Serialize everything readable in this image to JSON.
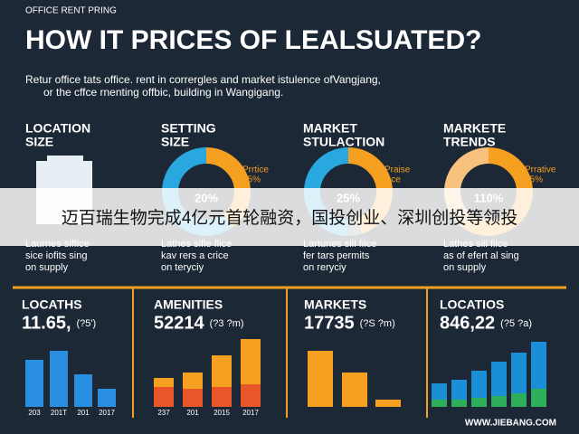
{
  "header": {
    "label": "OFFICE RENT PRING",
    "title": "HOW IT PRICES OF LEALSUATED?",
    "subtitle": [
      "Retur office tats office. rent in corrergles and market istulence ofVangjang,",
      "or the cffce rnenting offbic, building in Wangigang."
    ]
  },
  "sections": [
    {
      "heading": [
        "LOCATION",
        "SIZE"
      ],
      "caption": [
        "Laurnes siffice",
        "sice iofits sing",
        "on supply"
      ]
    },
    {
      "heading": [
        "SETTING",
        "SIZE"
      ],
      "caption": [
        "Lathes sifle flice",
        "kav rers a crice",
        "on teryciy"
      ],
      "donut": {
        "center": "20%",
        "note": [
          "Prrtice",
          "25%"
        ],
        "values": [
          40,
          60
        ],
        "colors": [
          "#f5a020",
          "#29a8e0"
        ]
      }
    },
    {
      "heading": [
        "MARKET",
        "STULACTION"
      ],
      "caption": [
        "Lartunes sill fiice",
        "fer tars permits",
        "on reryciy"
      ],
      "donut": {
        "center": "25%",
        "note": [
          "Praise",
          "ll ce"
        ],
        "values": [
          45,
          5,
          50
        ],
        "colors": [
          "#f5a020",
          "#7a8590",
          "#29a8e0"
        ]
      }
    },
    {
      "heading": [
        "MARKETE",
        "TRENDS"
      ],
      "caption": [
        "Lathes sill fiice",
        "as of efert al sing",
        "on supply"
      ],
      "donut": {
        "center": "110%",
        "note": [
          "Prrative",
          "35%"
        ],
        "values": [
          60,
          40
        ],
        "colors": [
          "#f5a020",
          "#f7c27e"
        ]
      }
    }
  ],
  "panels": [
    {
      "title": "LOCATHS",
      "value": "11.65,",
      "note": "(?5')",
      "categories": [
        "203",
        "201T",
        "201",
        "2017"
      ],
      "series": [
        {
          "color": "#2a8fe0",
          "values": [
            52,
            62,
            36,
            20
          ]
        }
      ]
    },
    {
      "title": "AMENITIES",
      "value": "52214",
      "note": "(?3 ?m)",
      "categories": [
        "237",
        "201",
        "2015",
        "2017"
      ],
      "series": [
        {
          "color": "#e8562a",
          "values": [
            22,
            20,
            22,
            25
          ]
        },
        {
          "color": "#f5a020",
          "values": [
            10,
            18,
            35,
            50
          ]
        }
      ]
    },
    {
      "title": "MARKETS",
      "value": "17735",
      "note": "(?S ?m)",
      "categories": [],
      "series": [
        {
          "color": "#f5a020",
          "values": [
            62,
            38,
            8
          ]
        }
      ]
    },
    {
      "title": "LOCATIOS",
      "value": "846,22",
      "note": "(?5 ?a)",
      "categories": [],
      "series": [
        {
          "color": "#2fae5a",
          "values": [
            8,
            8,
            10,
            12,
            15,
            20
          ]
        },
        {
          "color": "#1a8fd8",
          "values": [
            18,
            22,
            30,
            38,
            45,
            52
          ]
        }
      ]
    }
  ],
  "banner": "迈百瑞生物完成4亿元首轮融资，国投创业、深圳创投等领投",
  "footer": "WWW.JIEBANG.COM"
}
